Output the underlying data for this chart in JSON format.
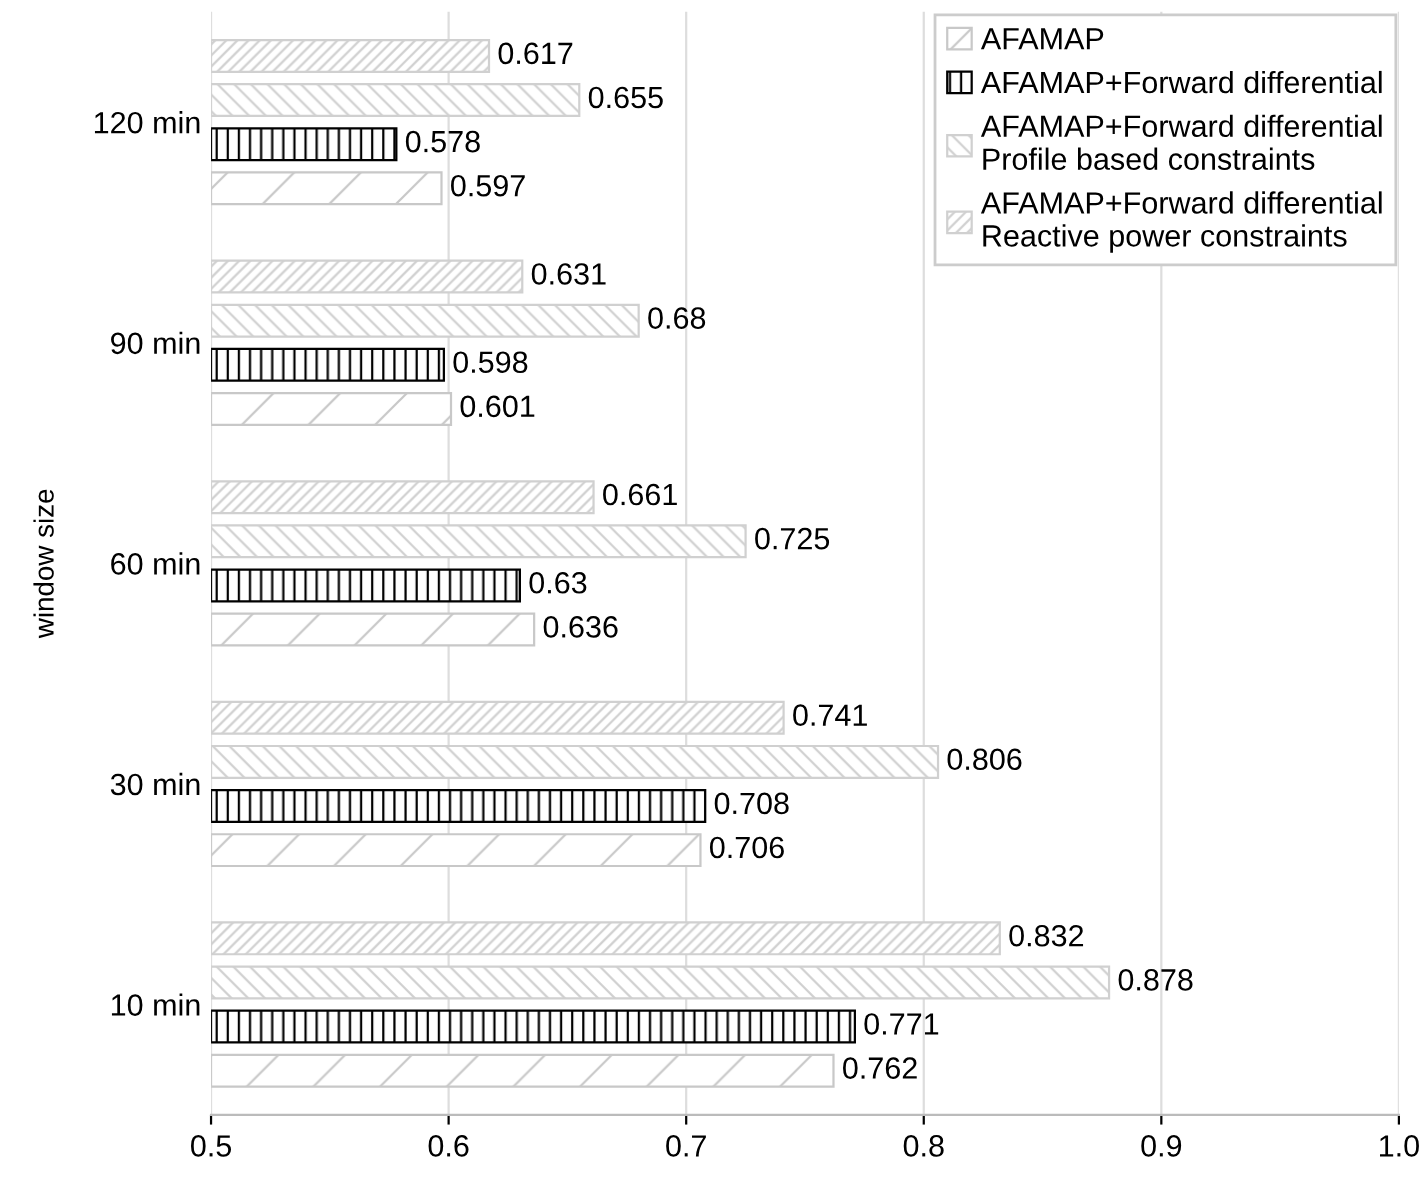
{
  "chart_data": {
    "type": "bar",
    "orientation": "horizontal",
    "ylabel": "window size",
    "categories": [
      "120 min",
      "90 min",
      "60 min",
      "30 min",
      "10 min"
    ],
    "series": [
      {
        "name": "AFAMAP",
        "color": "#c8c8c8",
        "values": [
          0.597,
          0.601,
          0.636,
          0.706,
          0.762
        ]
      },
      {
        "name": "AFAMAP+Forward differential",
        "color": "#000000",
        "values": [
          0.578,
          0.598,
          0.63,
          0.708,
          0.771
        ]
      },
      {
        "name": "AFAMAP+Forward differential\nProfile based constraints",
        "color": "#d0d0d0",
        "values": [
          0.655,
          0.68,
          0.725,
          0.806,
          0.878
        ]
      },
      {
        "name": "AFAMAP+Forward differential\nReactive power constraints",
        "color": "#d0d0d0",
        "values": [
          0.617,
          0.631,
          0.661,
          0.741,
          0.832
        ]
      }
    ],
    "xlim": [
      0.5,
      1
    ],
    "xticks": [
      0.5,
      0.6,
      0.7,
      0.8,
      0.9,
      {
        "value": 1,
        "label": "1.0"
      }
    ],
    "grid": "x",
    "legend": "top right",
    "data_labels": true
  }
}
